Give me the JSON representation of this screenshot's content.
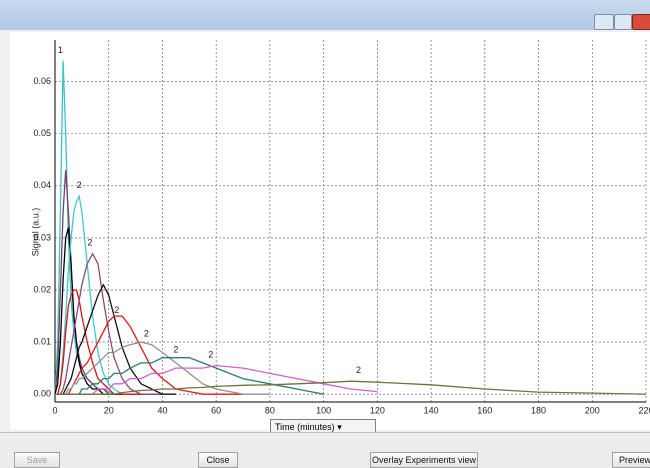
{
  "chart_data": {
    "type": "line",
    "y_label": "Signal (a.u.)",
    "x": [
      0,
      1,
      2,
      3,
      4,
      5,
      6,
      7,
      8,
      9,
      10,
      12,
      14,
      16,
      18,
      20,
      22,
      25,
      28,
      32,
      36,
      40,
      45,
      50,
      55,
      60,
      70,
      80,
      90,
      100,
      110,
      120,
      140,
      160,
      180,
      200,
      220
    ],
    "series": [
      {
        "color": "#3cc4c4",
        "values": [
          0,
          0.01,
          0.035,
          0.064,
          0.05,
          0.03,
          0.018,
          0.012,
          0.008,
          0.006,
          0.004,
          0.003,
          0.002,
          0.001,
          0.001,
          0.0005,
          0,
          0,
          0,
          0,
          0,
          0,
          null,
          null,
          null,
          null,
          null,
          null,
          null,
          null,
          null,
          null,
          null,
          null,
          null,
          null,
          null
        ]
      },
      {
        "color": "#7a3a6a",
        "values": [
          0,
          0.005,
          0.02,
          0.035,
          0.043,
          0.035,
          0.025,
          0.015,
          0.01,
          0.007,
          0.005,
          0.003,
          0.002,
          0.001,
          0.001,
          0,
          0,
          0,
          0,
          0,
          0,
          null,
          null,
          null,
          null,
          null,
          null,
          null,
          null,
          null,
          null,
          null,
          null,
          null,
          null,
          null,
          null
        ]
      },
      {
        "color": "#000000",
        "values": [
          0,
          0.002,
          0.01,
          0.022,
          0.03,
          0.032,
          0.025,
          0.015,
          0.01,
          0.006,
          0.004,
          0.002,
          0.001,
          0.001,
          0,
          0,
          0,
          0,
          0,
          0,
          0,
          0,
          null,
          null,
          null,
          null,
          null,
          null,
          null,
          null,
          null,
          null,
          null,
          null,
          null,
          null,
          null
        ]
      },
      {
        "color": "#40c8c8",
        "values": [
          0,
          0,
          0.002,
          0.008,
          0.015,
          0.024,
          0.03,
          0.035,
          0.037,
          0.038,
          0.035,
          0.025,
          0.015,
          0.008,
          0.004,
          0.002,
          0.001,
          0,
          0,
          0,
          0,
          0,
          null,
          null,
          null,
          null,
          null,
          null,
          null,
          null,
          null,
          null,
          null,
          null,
          null,
          null,
          null
        ]
      },
      {
        "color": "#e01010",
        "values": [
          0,
          0,
          0.002,
          0.006,
          0.012,
          0.017,
          0.019,
          0.02,
          0.02,
          0.018,
          0.015,
          0.01,
          0.006,
          0.003,
          0.002,
          0.001,
          0,
          0,
          0,
          0,
          0,
          0,
          null,
          null,
          null,
          null,
          null,
          null,
          null,
          null,
          null,
          null,
          null,
          null,
          null,
          null,
          null
        ]
      },
      {
        "color": "#8a4a80",
        "values": [
          0,
          0,
          0,
          0.001,
          0.003,
          0.006,
          0.009,
          0.012,
          0.015,
          0.018,
          0.021,
          0.025,
          0.027,
          0.025,
          0.018,
          0.012,
          0.007,
          0.003,
          0.001,
          0,
          0,
          0,
          null,
          null,
          null,
          null,
          null,
          null,
          null,
          null,
          null,
          null,
          null,
          null,
          null,
          null,
          null
        ]
      },
      {
        "color": "#101010",
        "values": [
          0,
          0,
          0,
          0,
          0.001,
          0.002,
          0.003,
          0.005,
          0.007,
          0.009,
          0.01,
          0.013,
          0.016,
          0.019,
          0.021,
          0.019,
          0.015,
          0.009,
          0.005,
          0.002,
          0.001,
          0,
          0,
          null,
          null,
          null,
          null,
          null,
          null,
          null,
          null,
          null,
          null,
          null,
          null,
          null,
          null
        ]
      },
      {
        "color": "#e01818",
        "values": [
          0,
          0,
          0,
          0,
          0,
          0,
          0.001,
          0.002,
          0.003,
          0.004,
          0.005,
          0.006,
          0.008,
          0.01,
          0.012,
          0.014,
          0.015,
          0.015,
          0.013,
          0.009,
          0.005,
          0.003,
          0.001,
          0.0005,
          0,
          0,
          0,
          null,
          null,
          null,
          null,
          null,
          null,
          null,
          null,
          null,
          null
        ]
      },
      {
        "color": "#909090",
        "values": [
          0,
          0,
          0,
          0,
          0,
          0.001,
          0.001,
          0.002,
          0.002,
          0.003,
          0.003,
          0.004,
          0.005,
          0.006,
          0.007,
          0.008,
          0.008,
          0.009,
          0.0095,
          0.01,
          0.0095,
          0.008,
          0.006,
          0.004,
          0.002,
          0.001,
          0,
          0,
          null,
          null,
          null,
          null,
          null,
          null,
          null,
          null,
          null
        ]
      },
      {
        "color": "#2a7a7a",
        "values": [
          0,
          0,
          0,
          0,
          0,
          0,
          0,
          0,
          0,
          0,
          0.001,
          0.001,
          0.002,
          0.002,
          0.003,
          0.003,
          0.004,
          0.004,
          0.005,
          0.006,
          0.006,
          0.007,
          0.007,
          0.007,
          0.006,
          0.005,
          0.003,
          0.002,
          0.001,
          0,
          null,
          null,
          null,
          null,
          null,
          null,
          null
        ]
      },
      {
        "color": "#d060d0",
        "values": [
          0,
          0,
          0,
          0,
          0,
          0,
          0,
          0,
          0,
          0,
          0,
          0,
          0,
          0.001,
          0.001,
          0.001,
          0.002,
          0.002,
          0.003,
          0.003,
          0.004,
          0.004,
          0.005,
          0.005,
          0.005,
          0.0055,
          0.005,
          0.004,
          0.003,
          0.002,
          0.001,
          0.0005,
          null,
          null,
          null,
          null,
          null
        ]
      },
      {
        "color": "#707040",
        "values": [
          0,
          0,
          0,
          0,
          0,
          0,
          0,
          0,
          0,
          0,
          0,
          0,
          0,
          0,
          0,
          0,
          0,
          0.0003,
          0.0005,
          0.0007,
          0.0008,
          0.001,
          0.001,
          0.0012,
          0.0013,
          0.0015,
          0.0017,
          0.0018,
          0.002,
          0.0022,
          0.0025,
          0.0023,
          0.0018,
          0.001,
          0.0004,
          0.0002,
          0
        ]
      }
    ],
    "annotations": [
      {
        "text": "1",
        "x": 2,
        "y": 0.066
      },
      {
        "text": "2",
        "x": 9,
        "y": 0.04
      },
      {
        "text": "2",
        "x": 13,
        "y": 0.029
      },
      {
        "text": "2",
        "x": 23,
        "y": 0.016
      },
      {
        "text": "2",
        "x": 34,
        "y": 0.0115
      },
      {
        "text": "2",
        "x": 45,
        "y": 0.0085
      },
      {
        "text": "2",
        "x": 58,
        "y": 0.0075
      },
      {
        "text": "2",
        "x": 113,
        "y": 0.0045
      }
    ],
    "xlim": [
      0,
      220
    ],
    "ylim": [
      -0.0015,
      0.068
    ],
    "xticks": [
      0,
      20,
      40,
      60,
      80,
      100,
      120,
      140,
      160,
      180,
      200,
      220
    ],
    "yticks": [
      {
        "value": 0,
        "label": "0.00"
      },
      {
        "value": 0.01,
        "label": "0.01"
      },
      {
        "value": 0.02,
        "label": "0.02"
      },
      {
        "value": 0.03,
        "label": "0.03"
      },
      {
        "value": 0.04,
        "label": "0.04"
      },
      {
        "value": 0.05,
        "label": "0.05"
      },
      {
        "value": 0.06,
        "label": "0.06"
      }
    ],
    "grid": true
  },
  "ui": {
    "x_axis_selector": "Time (minutes)",
    "buttons": [
      "Save",
      "Close",
      "Preview"
    ],
    "view_selector": "Overlay Experiments view"
  }
}
